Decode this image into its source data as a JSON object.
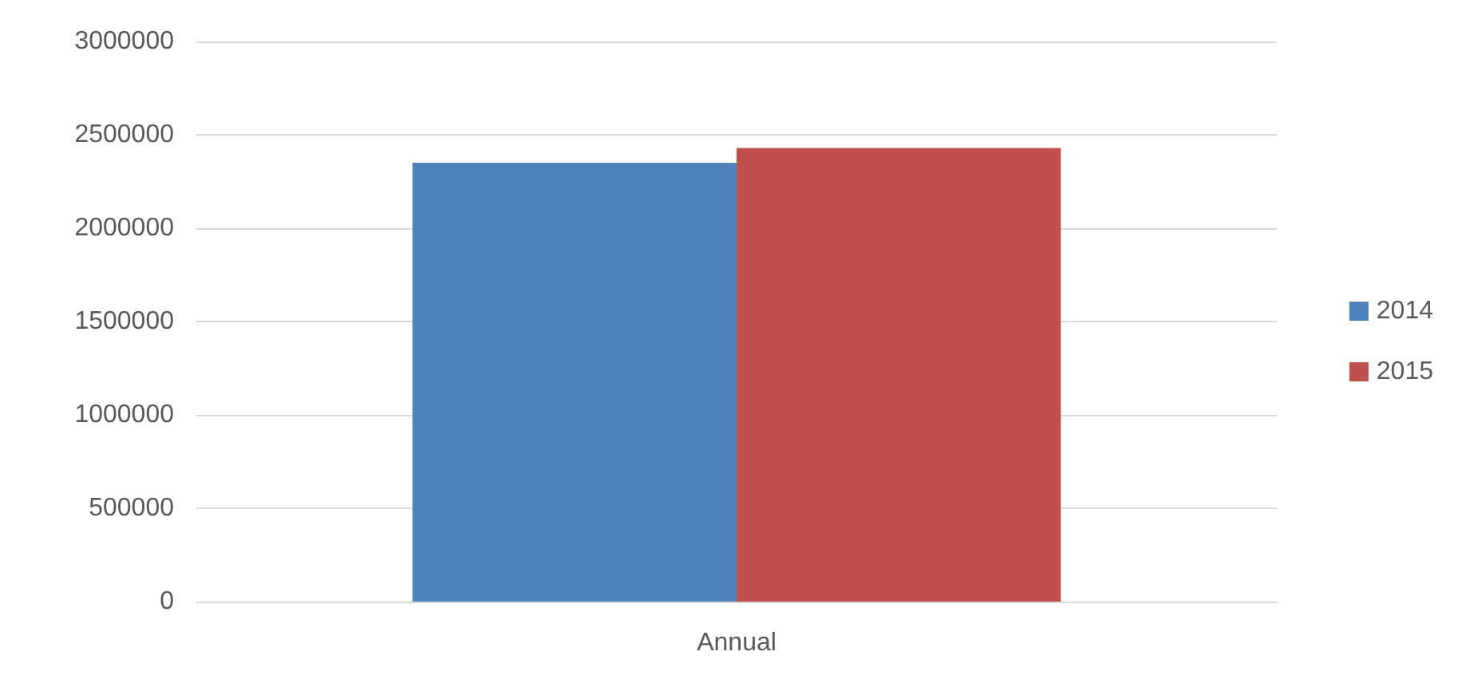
{
  "chart_data": {
    "type": "bar",
    "categories": [
      "Annual"
    ],
    "series": [
      {
        "name": "2014",
        "color": "#4f81bd",
        "values": [
          2350000
        ]
      },
      {
        "name": "2015",
        "color": "#c0504d",
        "values": [
          2430000
        ]
      }
    ],
    "ylim": [
      0,
      3000000
    ],
    "yticks": [
      0,
      500000,
      1000000,
      1500000,
      2000000,
      2500000,
      3000000
    ],
    "grid": "y",
    "legend": "right"
  }
}
